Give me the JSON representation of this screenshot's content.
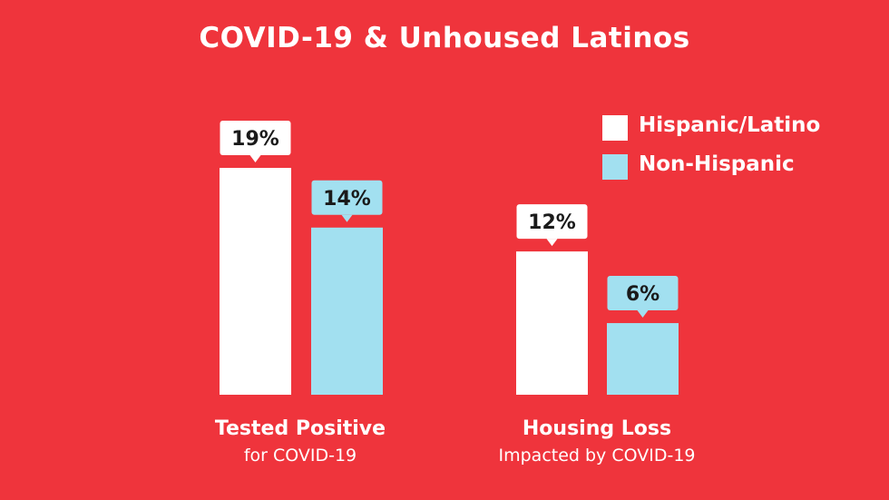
{
  "chart_data": {
    "type": "bar",
    "title": "COVID-19 & Unhoused Latinos",
    "categories": [
      {
        "main": "Tested Positive",
        "sub": "for COVID-19"
      },
      {
        "main": "Housing Loss",
        "sub": "Impacted by COVID-19"
      }
    ],
    "series": [
      {
        "name": "Hispanic/Latino",
        "color": "#ffffff",
        "values": [
          19,
          12
        ],
        "labels": [
          "19%",
          "12%"
        ]
      },
      {
        "name": "Non-Hispanic",
        "color": "#a2e0f0",
        "values": [
          14,
          6
        ],
        "labels": [
          "14%",
          "6%"
        ]
      }
    ],
    "ylim": [
      0,
      19
    ],
    "grid": false,
    "legend": "top-right"
  }
}
